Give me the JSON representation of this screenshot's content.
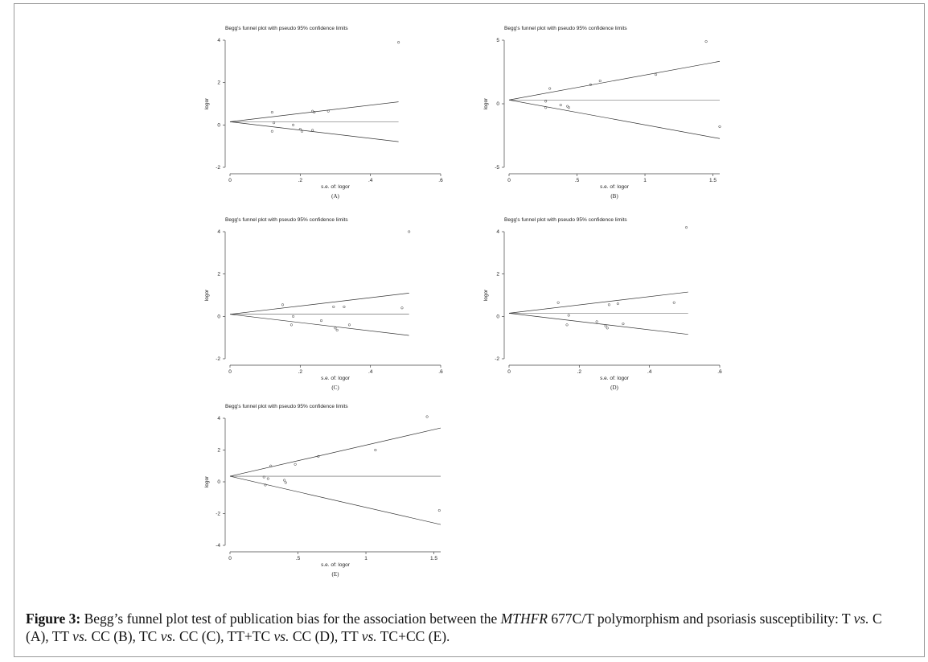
{
  "figure": {
    "caption_label": "Figure 3:",
    "caption_part1": " Begg’s funnel plot test of publication bias for the association between the ",
    "caption_gene": "MTHFR",
    "caption_part2": " 677C/T polymorphism and psoriasis susceptibility: T ",
    "vs1": "vs.",
    "caption_part3": " C (A), TT ",
    "vs2": "vs.",
    "caption_part4": " CC (B), TC ",
    "vs3": "vs.",
    "caption_part5": " CC (C), TT+TC ",
    "vs4": "vs.",
    "caption_part6": " CC (D), TT ",
    "vs5": "vs.",
    "caption_part7": " TC+CC (E)."
  },
  "chart_data": [
    {
      "id": "A",
      "type": "scatter",
      "title": "Begg's funnel plot with pseudo 95% confidence limits",
      "xlabel": "s.e. of: logor",
      "ylabel": "logor",
      "panel_label": "(A)",
      "xlim": [
        0,
        0.6
      ],
      "ylim": [
        -2,
        4
      ],
      "xticks": [
        0,
        0.2,
        0.4,
        0.6
      ],
      "xtick_labels": [
        "0",
        ".2",
        ".4",
        ".6"
      ],
      "yticks": [
        -2,
        0,
        2,
        4
      ],
      "ytick_labels": [
        "-2",
        "0",
        "2",
        "4"
      ],
      "pooled": 0.15,
      "se_max": 0.48,
      "points": [
        [
          0.12,
          0.6
        ],
        [
          0.125,
          0.1
        ],
        [
          0.12,
          -0.3
        ],
        [
          0.18,
          0.0
        ],
        [
          0.2,
          -0.2
        ],
        [
          0.205,
          -0.3
        ],
        [
          0.235,
          0.65
        ],
        [
          0.24,
          0.6
        ],
        [
          0.235,
          -0.25
        ],
        [
          0.28,
          0.65
        ],
        [
          0.48,
          3.9
        ]
      ]
    },
    {
      "id": "B",
      "type": "scatter",
      "title": "Begg's funnel plot with pseudo 95% confidence limits",
      "xlabel": "s.e. of: logor",
      "ylabel": "logor",
      "panel_label": "(B)",
      "xlim": [
        0,
        1.55
      ],
      "ylim": [
        -5,
        5
      ],
      "xticks": [
        0,
        0.5,
        1,
        1.5
      ],
      "xtick_labels": [
        "0",
        ".5",
        "1",
        "1.5"
      ],
      "yticks": [
        -5,
        0,
        5
      ],
      "ytick_labels": [
        "-5",
        "0",
        "5"
      ],
      "pooled": 0.3,
      "se_max": 1.55,
      "points": [
        [
          0.27,
          0.2
        ],
        [
          0.27,
          -0.3
        ],
        [
          0.3,
          1.2
        ],
        [
          0.38,
          -0.1
        ],
        [
          0.43,
          -0.2
        ],
        [
          0.44,
          -0.3
        ],
        [
          0.6,
          1.5
        ],
        [
          0.67,
          1.8
        ],
        [
          1.08,
          2.3
        ],
        [
          1.45,
          4.9
        ],
        [
          1.55,
          -1.8
        ]
      ]
    },
    {
      "id": "C",
      "type": "scatter",
      "title": "Begg's funnel plot with pseudo 95% confidence limits",
      "xlabel": "s.e. of: logor",
      "ylabel": "logor",
      "panel_label": "(C)",
      "xlim": [
        0,
        0.6
      ],
      "ylim": [
        -2,
        4
      ],
      "xticks": [
        0,
        0.2,
        0.4,
        0.6
      ],
      "xtick_labels": [
        "0",
        ".2",
        ".4",
        ".6"
      ],
      "yticks": [
        -2,
        0,
        2,
        4
      ],
      "ytick_labels": [
        "-2",
        "0",
        "2",
        "4"
      ],
      "pooled": 0.1,
      "se_max": 0.51,
      "points": [
        [
          0.15,
          0.55
        ],
        [
          0.175,
          -0.4
        ],
        [
          0.18,
          0.0
        ],
        [
          0.26,
          -0.2
        ],
        [
          0.295,
          0.45
        ],
        [
          0.3,
          -0.55
        ],
        [
          0.305,
          -0.65
        ],
        [
          0.325,
          0.45
        ],
        [
          0.34,
          -0.4
        ],
        [
          0.49,
          0.4
        ],
        [
          0.51,
          4.0
        ]
      ]
    },
    {
      "id": "D",
      "type": "scatter",
      "title": "Begg's funnel plot with pseudo 95% confidence limits",
      "xlabel": "s.e. of: logor",
      "ylabel": "logor",
      "panel_label": "(D)",
      "xlim": [
        0,
        0.6
      ],
      "ylim": [
        -2,
        4
      ],
      "xticks": [
        0,
        0.2,
        0.4,
        0.6
      ],
      "xtick_labels": [
        "0",
        ".2",
        ".4",
        ".6"
      ],
      "yticks": [
        -2,
        0,
        2,
        4
      ],
      "ytick_labels": [
        "-2",
        "0",
        "2",
        "4"
      ],
      "pooled": 0.15,
      "se_max": 0.51,
      "points": [
        [
          0.14,
          0.65
        ],
        [
          0.165,
          -0.4
        ],
        [
          0.17,
          0.05
        ],
        [
          0.25,
          -0.25
        ],
        [
          0.275,
          -0.45
        ],
        [
          0.28,
          -0.55
        ],
        [
          0.285,
          0.55
        ],
        [
          0.31,
          0.6
        ],
        [
          0.325,
          -0.35
        ],
        [
          0.47,
          0.65
        ],
        [
          0.505,
          4.2
        ]
      ]
    },
    {
      "id": "E",
      "type": "scatter",
      "title": "Begg's funnel plot with pseudo 95% confidence limits",
      "xlabel": "s.e. of: logor",
      "ylabel": "logor",
      "panel_label": "(E)",
      "xlim": [
        0,
        1.55
      ],
      "ylim": [
        -4,
        4
      ],
      "xticks": [
        0,
        0.5,
        1,
        1.5
      ],
      "xtick_labels": [
        "0",
        ".5",
        "1",
        "1.5"
      ],
      "yticks": [
        -4,
        -2,
        0,
        2,
        4
      ],
      "ytick_labels": [
        "-4",
        "-2",
        "0",
        "2",
        "4"
      ],
      "pooled": 0.35,
      "se_max": 1.55,
      "points": [
        [
          0.25,
          0.3
        ],
        [
          0.26,
          -0.2
        ],
        [
          0.28,
          0.2
        ],
        [
          0.3,
          1.0
        ],
        [
          0.4,
          0.1
        ],
        [
          0.41,
          -0.05
        ],
        [
          0.48,
          1.1
        ],
        [
          0.65,
          1.6
        ],
        [
          1.07,
          2.0
        ],
        [
          1.45,
          4.1
        ],
        [
          1.54,
          -1.8
        ]
      ]
    }
  ]
}
